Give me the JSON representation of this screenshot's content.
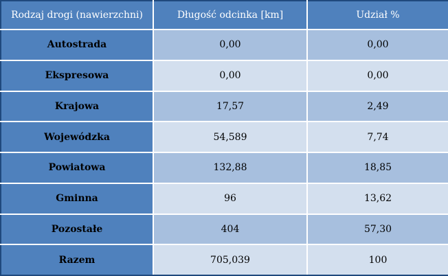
{
  "table": {
    "headers": [
      "Rodzaj drogi (nawierzchni)",
      "Długość odcinka [km]",
      "Udział %"
    ],
    "rows": [
      {
        "label": "Autostrada",
        "length": "0,00",
        "share": "0,00"
      },
      {
        "label": "Ekspresowa",
        "length": "0,00",
        "share": "0,00"
      },
      {
        "label": "Krajowa",
        "length": "17,57",
        "share": "2,49"
      },
      {
        "label": "Wojewódzka",
        "length": "54,589",
        "share": "7,74"
      },
      {
        "label": "Powiatowa",
        "length": "132,88",
        "share": "18,85"
      },
      {
        "label": "Gminna",
        "length": "96",
        "share": "13,62"
      },
      {
        "label": "Pozostałe",
        "length": "404",
        "share": "57,30"
      },
      {
        "label": "Razem",
        "length": "705,039",
        "share": "100"
      }
    ]
  },
  "colors": {
    "header_bg": "#4f81bd",
    "row_header_bg": "#4f81bd",
    "band_dark": "#a7bfde",
    "band_light": "#d3dfee",
    "border": "#1f497d"
  }
}
